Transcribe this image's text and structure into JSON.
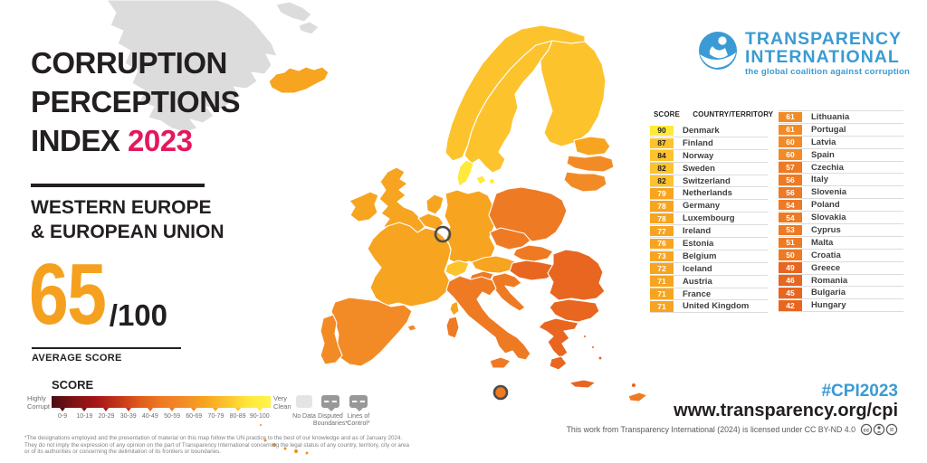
{
  "header": {
    "title_line1": "CORRUPTION",
    "title_line2": "PERCEPTIONS",
    "title_line3_prefix": "INDEX ",
    "title_year": "2023",
    "region_line1": "WESTERN EUROPE",
    "region_line2": "& EUROPEAN UNION",
    "average_score": "65",
    "score_denominator": "/100",
    "average_score_label": "AVERAGE SCORE"
  },
  "logo": {
    "name_line1": "TRANSPARENCY",
    "name_line2": "INTERNATIONAL",
    "tagline": "the global coalition against corruption"
  },
  "legend": {
    "title": "SCORE",
    "left_label_line1": "Highly",
    "left_label_line2": "Corrupt",
    "right_label_line1": "Very",
    "right_label_line2": "Clean",
    "ticks": [
      "0-9",
      "10-19",
      "20-29",
      "30-39",
      "40-49",
      "50-59",
      "60-69",
      "70-79",
      "80-89",
      "90-100"
    ],
    "decade_colors": [
      "#4b0d11",
      "#7d1315",
      "#a31518",
      "#c2331a",
      "#e8661f",
      "#ee7a24",
      "#f28b26",
      "#f7a420",
      "#fcc32c",
      "#ffe93a"
    ],
    "gradient_stops": [
      "#4b0d11",
      "#7d1315",
      "#a31518",
      "#c2331a",
      "#e05a1a",
      "#ee7a24",
      "#f28b26",
      "#f7a420",
      "#fcc32c",
      "#ffe93a",
      "#fff34d"
    ],
    "no_data_label": "No Data",
    "disputed_label": "Disputed Boundaries*",
    "lines_label": "Lines of Control*"
  },
  "table": {
    "header_score": "SCORE",
    "header_country": "COUNTRY/TERRITORY",
    "columns": [
      [
        {
          "score": 90,
          "name": "Denmark"
        },
        {
          "score": 87,
          "name": "Finland"
        },
        {
          "score": 84,
          "name": "Norway"
        },
        {
          "score": 82,
          "name": "Sweden"
        },
        {
          "score": 82,
          "name": "Switzerland"
        },
        {
          "score": 79,
          "name": "Netherlands"
        },
        {
          "score": 78,
          "name": "Germany"
        },
        {
          "score": 78,
          "name": "Luxembourg"
        },
        {
          "score": 77,
          "name": "Ireland"
        },
        {
          "score": 76,
          "name": "Estonia"
        },
        {
          "score": 73,
          "name": "Belgium"
        },
        {
          "score": 72,
          "name": "Iceland"
        },
        {
          "score": 71,
          "name": "Austria"
        },
        {
          "score": 71,
          "name": "France"
        },
        {
          "score": 71,
          "name": "United Kingdom"
        }
      ],
      [
        {
          "score": 61,
          "name": "Lithuania"
        },
        {
          "score": 61,
          "name": "Portugal"
        },
        {
          "score": 60,
          "name": "Latvia"
        },
        {
          "score": 60,
          "name": "Spain"
        },
        {
          "score": 57,
          "name": "Czechia"
        },
        {
          "score": 56,
          "name": "Italy"
        },
        {
          "score": 56,
          "name": "Slovenia"
        },
        {
          "score": 54,
          "name": "Poland"
        },
        {
          "score": 54,
          "name": "Slovakia"
        },
        {
          "score": 53,
          "name": "Cyprus"
        },
        {
          "score": 51,
          "name": "Malta"
        },
        {
          "score": 50,
          "name": "Croatia"
        },
        {
          "score": 49,
          "name": "Greece"
        },
        {
          "score": 46,
          "name": "Romania"
        },
        {
          "score": 45,
          "name": "Bulgaria"
        },
        {
          "score": 42,
          "name": "Hungary"
        }
      ]
    ]
  },
  "map": {
    "no_data_color": "#dcdcdc",
    "scores": {
      "iceland": 72,
      "norway": 84,
      "sweden": 82,
      "finland": 87,
      "denmark": 90,
      "estonia": 76,
      "latvia": 60,
      "lithuania": 61,
      "uk": 71,
      "ireland": 77,
      "netherlands": 79,
      "belgium": 73,
      "germany": 78,
      "poland": 54,
      "czechia": 57,
      "france": 71,
      "switzerland": 82,
      "austria": 71,
      "slovakia": 54,
      "hungary": 42,
      "slovenia": 56,
      "croatia": 50,
      "italy": 56,
      "romania": 46,
      "bulgaria": 45,
      "greece": 49,
      "cyprus": 53,
      "spain": 60,
      "portugal": 61,
      "malta": 51
    }
  },
  "footer": {
    "hashtag": "#CPI2023",
    "url": "www.transparency.org/cpi",
    "license": "This work from Transparency International (2024) is licensed under CC BY-ND 4.0",
    "license_icons": [
      "cc-circle-icon",
      "cc-attribution-icon",
      "cc-no-derivatives-icon"
    ],
    "footnote": "*The designations employed and the presentation of material on this map follow the UN practice to the best of our knowledge and as of January 2024. They do not imply the expression of any opinion on the part of Transparency International concerning the legal status of any country, territory, city or area or of its authorities or concerning the delimitation of its frontiers or boundaries."
  },
  "colors": {
    "accent_pink": "#e4175f",
    "accent_orange": "#f5a11f",
    "brand_blue": "#3a9bd4",
    "dark_text": "#231f20"
  }
}
